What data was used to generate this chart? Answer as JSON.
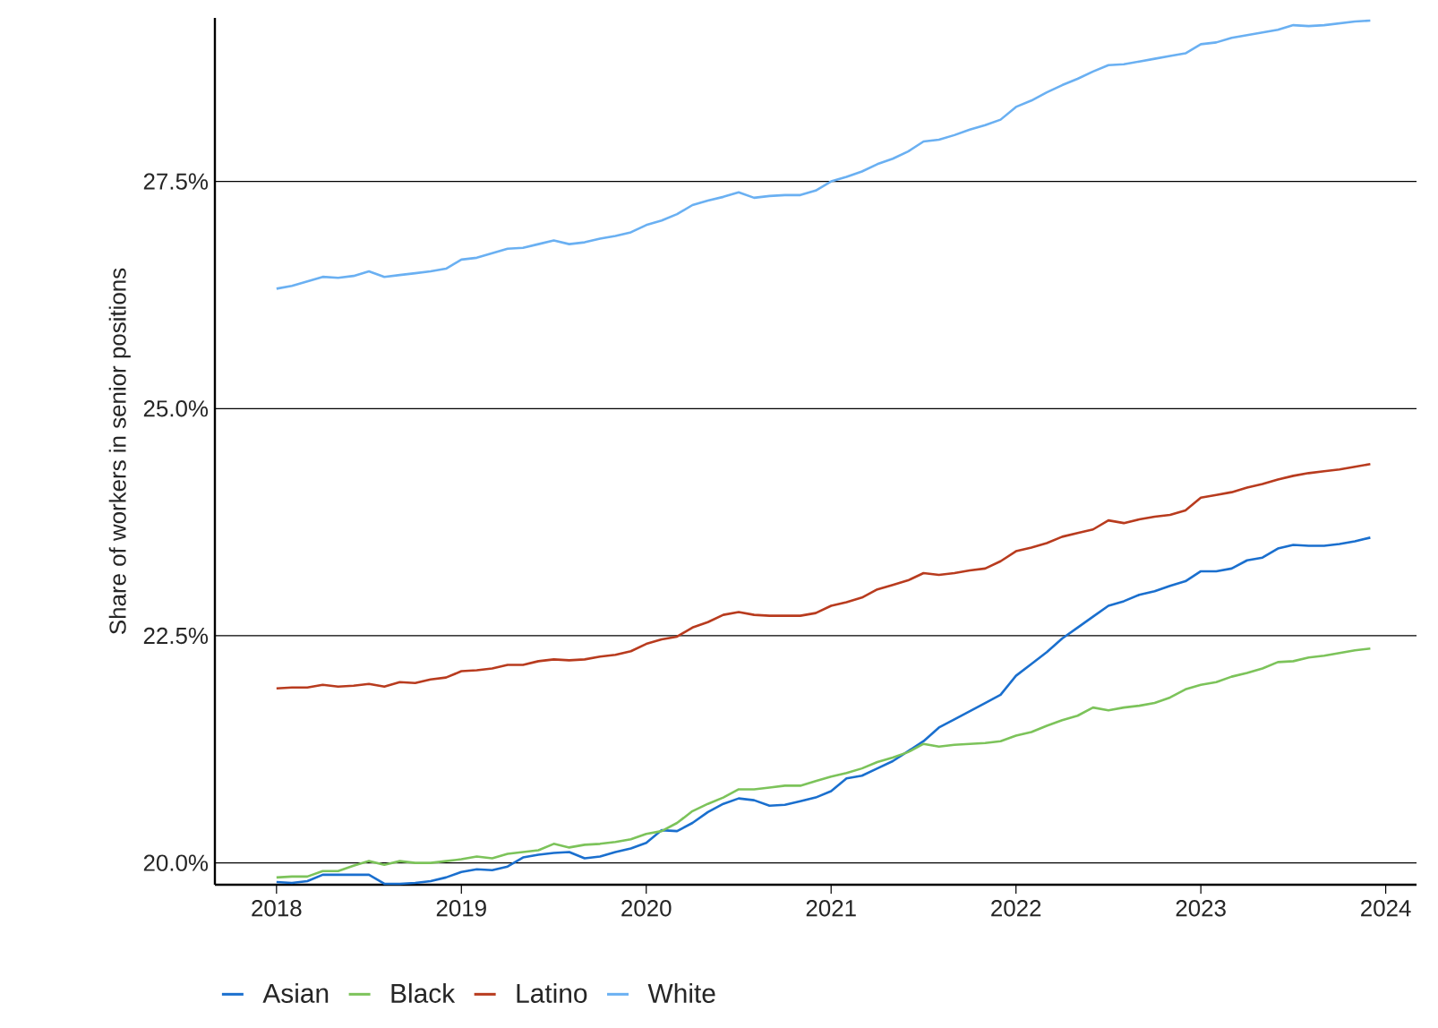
{
  "chart_data": {
    "type": "line",
    "ylabel": "Share of workers in senior positions",
    "x": [
      "2018-01",
      "2018-02",
      "2018-03",
      "2018-04",
      "2018-05",
      "2018-06",
      "2018-07",
      "2018-08",
      "2018-09",
      "2018-10",
      "2018-11",
      "2018-12",
      "2019-01",
      "2019-02",
      "2019-03",
      "2019-04",
      "2019-05",
      "2019-06",
      "2019-07",
      "2019-08",
      "2019-09",
      "2019-10",
      "2019-11",
      "2019-12",
      "2020-01",
      "2020-02",
      "2020-03",
      "2020-04",
      "2020-05",
      "2020-06",
      "2020-07",
      "2020-08",
      "2020-09",
      "2020-10",
      "2020-11",
      "2020-12",
      "2021-01",
      "2021-02",
      "2021-03",
      "2021-04",
      "2021-05",
      "2021-06",
      "2021-07",
      "2021-08",
      "2021-09",
      "2021-10",
      "2021-11",
      "2021-12",
      "2022-01",
      "2022-02",
      "2022-03",
      "2022-04",
      "2022-05",
      "2022-06",
      "2022-07",
      "2022-08",
      "2022-09",
      "2022-10",
      "2022-11",
      "2022-12",
      "2023-01",
      "2023-02",
      "2023-03",
      "2023-04",
      "2023-05",
      "2023-06",
      "2023-07",
      "2023-08",
      "2023-09",
      "2023-10",
      "2023-11",
      "2023-12"
    ],
    "series": [
      {
        "name": "Asian",
        "color": "#1a6fce",
        "values": [
          19.79,
          19.78,
          19.8,
          19.87,
          19.87,
          19.87,
          19.87,
          19.77,
          19.77,
          19.78,
          19.8,
          19.84,
          19.9,
          19.93,
          19.92,
          19.96,
          20.06,
          20.09,
          20.11,
          20.12,
          20.05,
          20.07,
          20.12,
          20.16,
          20.22,
          20.36,
          20.35,
          20.44,
          20.56,
          20.65,
          20.71,
          20.69,
          20.63,
          20.64,
          20.68,
          20.72,
          20.79,
          20.93,
          20.96,
          21.04,
          21.12,
          21.23,
          21.34,
          21.49,
          21.58,
          21.67,
          21.76,
          21.85,
          22.06,
          22.19,
          22.32,
          22.47,
          22.59,
          22.71,
          22.83,
          22.88,
          22.95,
          22.99,
          23.05,
          23.1,
          23.21,
          23.21,
          23.24,
          23.33,
          23.36,
          23.46,
          23.5,
          23.49,
          23.49,
          23.51,
          23.54,
          23.58
        ]
      },
      {
        "name": "Black",
        "color": "#7cc35a",
        "values": [
          19.84,
          19.85,
          19.85,
          19.91,
          19.91,
          19.97,
          20.02,
          19.98,
          20.02,
          20.0,
          20.0,
          20.02,
          20.04,
          20.07,
          20.05,
          20.1,
          20.12,
          20.14,
          20.21,
          20.17,
          20.2,
          20.21,
          20.23,
          20.26,
          20.32,
          20.35,
          20.44,
          20.57,
          20.65,
          20.72,
          20.81,
          20.81,
          20.83,
          20.85,
          20.85,
          20.9,
          20.95,
          20.99,
          21.04,
          21.11,
          21.16,
          21.22,
          21.31,
          21.28,
          21.3,
          21.31,
          21.32,
          21.34,
          21.4,
          21.44,
          21.51,
          21.57,
          21.62,
          21.71,
          21.68,
          21.71,
          21.73,
          21.76,
          21.82,
          21.91,
          21.96,
          21.99,
          22.05,
          22.09,
          22.14,
          22.21,
          22.22,
          22.26,
          22.28,
          22.31,
          22.34,
          22.36
        ]
      },
      {
        "name": "Latino",
        "color": "#b83b1e",
        "values": [
          21.92,
          21.93,
          21.93,
          21.96,
          21.94,
          21.95,
          21.97,
          21.94,
          21.99,
          21.98,
          22.02,
          22.04,
          22.11,
          22.12,
          22.14,
          22.18,
          22.18,
          22.22,
          22.24,
          22.23,
          22.24,
          22.27,
          22.29,
          22.33,
          22.41,
          22.46,
          22.49,
          22.59,
          22.65,
          22.73,
          22.76,
          22.73,
          22.72,
          22.72,
          22.72,
          22.75,
          22.83,
          22.87,
          22.92,
          23.01,
          23.06,
          23.11,
          23.19,
          23.17,
          23.19,
          23.22,
          23.24,
          23.32,
          23.43,
          23.47,
          23.52,
          23.59,
          23.63,
          23.67,
          23.77,
          23.74,
          23.78,
          23.81,
          23.83,
          23.88,
          24.02,
          24.05,
          24.08,
          24.13,
          24.17,
          24.22,
          24.26,
          24.29,
          24.31,
          24.33,
          24.36,
          24.39
        ]
      },
      {
        "name": "White",
        "color": "#6ab0f2",
        "values": [
          26.32,
          26.35,
          26.4,
          26.45,
          26.44,
          26.46,
          26.51,
          26.45,
          26.47,
          26.49,
          26.51,
          26.54,
          26.64,
          26.66,
          26.71,
          26.76,
          26.77,
          26.81,
          26.85,
          26.81,
          26.83,
          26.87,
          26.9,
          26.94,
          27.02,
          27.07,
          27.14,
          27.24,
          27.29,
          27.33,
          27.38,
          27.32,
          27.34,
          27.35,
          27.35,
          27.4,
          27.5,
          27.55,
          27.61,
          27.69,
          27.75,
          27.83,
          27.94,
          27.96,
          28.01,
          28.07,
          28.12,
          28.18,
          28.32,
          28.39,
          28.48,
          28.56,
          28.63,
          28.71,
          28.78,
          28.79,
          28.82,
          28.85,
          28.88,
          28.91,
          29.01,
          29.03,
          29.08,
          29.11,
          29.14,
          29.17,
          29.22,
          29.21,
          29.22,
          29.24,
          29.26,
          29.27
        ]
      }
    ],
    "xlim": [
      "2017-09",
      "2024-03"
    ],
    "xticks": [
      "2018",
      "2019",
      "2020",
      "2021",
      "2022",
      "2023",
      "2024"
    ],
    "ylim": [
      19.76,
      29.3
    ],
    "yticks": [
      {
        "value": 20,
        "label": "20.0%"
      },
      {
        "value": 22.5,
        "label": "22.5%"
      },
      {
        "value": 25,
        "label": "25.0%"
      },
      {
        "value": 27.5,
        "label": "27.5%"
      }
    ],
    "grid": "y",
    "legend": "bottom",
    "marker": "none",
    "line_style": "solid"
  }
}
